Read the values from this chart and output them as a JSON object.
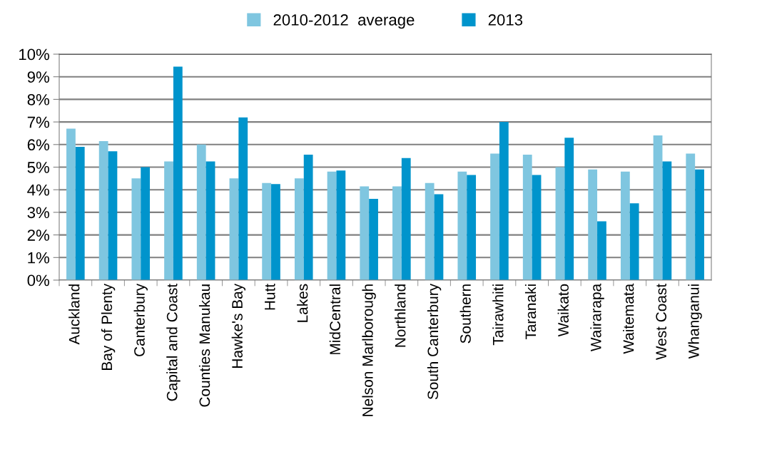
{
  "chart_data": {
    "type": "bar",
    "categories": [
      "Auckland",
      "Bay of Plenty",
      "Canterbury",
      "Capital and Coast",
      "Counties Manukau",
      "Hawke's Bay",
      "Hutt",
      "Lakes",
      "MidCentral",
      "Nelson Marlborough",
      "Northland",
      "South Canterbury",
      "Southern",
      "Tairawhiti",
      "Taranaki",
      "Waikato",
      "Wairarapa",
      "Waitemata",
      "West Coast",
      "Whanganui"
    ],
    "series": [
      {
        "name": "2010-2012  average",
        "color": "#7fc6e0",
        "values": [
          6.7,
          6.15,
          4.5,
          5.25,
          6.0,
          4.5,
          4.3,
          4.5,
          4.8,
          4.15,
          4.15,
          4.3,
          4.8,
          5.6,
          5.55,
          5.0,
          4.9,
          4.8,
          6.4,
          5.6
        ]
      },
      {
        "name": "2013",
        "color": "#0094cc",
        "values": [
          5.9,
          5.7,
          5.0,
          9.45,
          5.25,
          7.2,
          4.25,
          5.55,
          4.85,
          3.6,
          5.4,
          3.8,
          4.65,
          7.0,
          4.65,
          6.3,
          2.6,
          3.4,
          5.25,
          4.9
        ]
      }
    ],
    "ylim": [
      0,
      10
    ],
    "yticks": [
      {
        "value": 0,
        "label": "0%"
      },
      {
        "value": 1,
        "label": "1%"
      },
      {
        "value": 2,
        "label": "2%"
      },
      {
        "value": 3,
        "label": "3%"
      },
      {
        "value": 4,
        "label": "4%"
      },
      {
        "value": 5,
        "label": "5%"
      },
      {
        "value": 6,
        "label": "6%"
      },
      {
        "value": 7,
        "label": "7%"
      },
      {
        "value": 8,
        "label": "8%"
      },
      {
        "value": 9,
        "label": "9%"
      },
      {
        "value": 10,
        "label": "10%"
      }
    ],
    "grid": "y",
    "legend": "top"
  }
}
